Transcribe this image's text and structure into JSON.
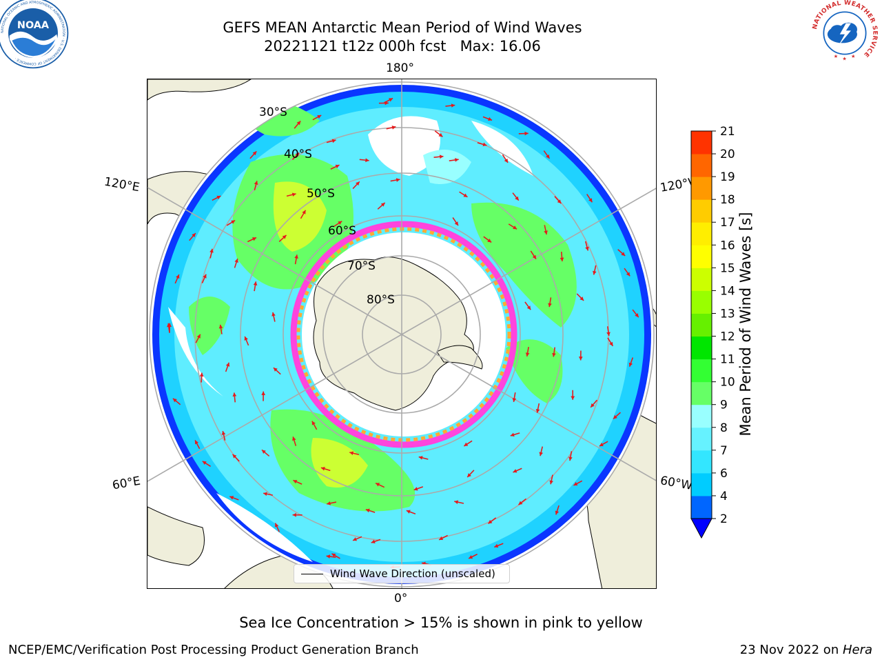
{
  "title": {
    "line1": "GEFS MEAN Antarctic Mean Period of Wind Waves",
    "line2": "20221121 t12z 000h fcst   Max: 16.06"
  },
  "map": {
    "projection": "south-polar-stereographic",
    "longitude_labels": {
      "top": "180°",
      "bottom": "0°",
      "upper_left": "120°E",
      "upper_right": "120°W",
      "lower_left": "60°E",
      "lower_right": "60°W"
    },
    "latitude_labels": [
      "30°S",
      "40°S",
      "50°S",
      "60°S",
      "70°S",
      "80°S"
    ],
    "legend_entry": "Wind Wave Direction (unscaled)",
    "arrow_color": "#e41a1c",
    "land_color": "#efeedb"
  },
  "colorbar": {
    "label": "Mean Period of Wind Waves [s]",
    "ticks": [
      "2",
      "4",
      "6",
      "7",
      "8",
      "9",
      "10",
      "11",
      "12",
      "13",
      "14",
      "15",
      "16",
      "17",
      "18",
      "19",
      "20",
      "21"
    ],
    "colors": [
      "#0066ff",
      "#00ccff",
      "#33e6ff",
      "#66f2ff",
      "#99ffff",
      "#66ff66",
      "#33ff33",
      "#00e600",
      "#66f000",
      "#99ff00",
      "#ccff00",
      "#ffff00",
      "#ffee00",
      "#ffcc00",
      "#ff9900",
      "#ff6600",
      "#ff3300",
      "#ff0000"
    ],
    "under_color": "#0000ff",
    "extend": "min"
  },
  "subtitle": "Sea Ice Concentration > 15% is shown in pink to yellow",
  "footer": {
    "left": "NCEP/EMC/Verification Post Processing Product Generation Branch",
    "date": "23 Nov 2022 on ",
    "machine": "Hera"
  },
  "logos": {
    "noaa": {
      "text": "NOAA",
      "ring_text": "NATIONAL OCEANIC AND ATMOSPHERIC ADMINISTRATION · U.S. DEPARTMENT OF COMMERCE ·",
      "color": "#1a5ea8"
    },
    "nws": {
      "ring_text": "NATIONAL WEATHER SERVICE",
      "color": "#d32f2f",
      "inner_color": "#1565c0"
    }
  }
}
